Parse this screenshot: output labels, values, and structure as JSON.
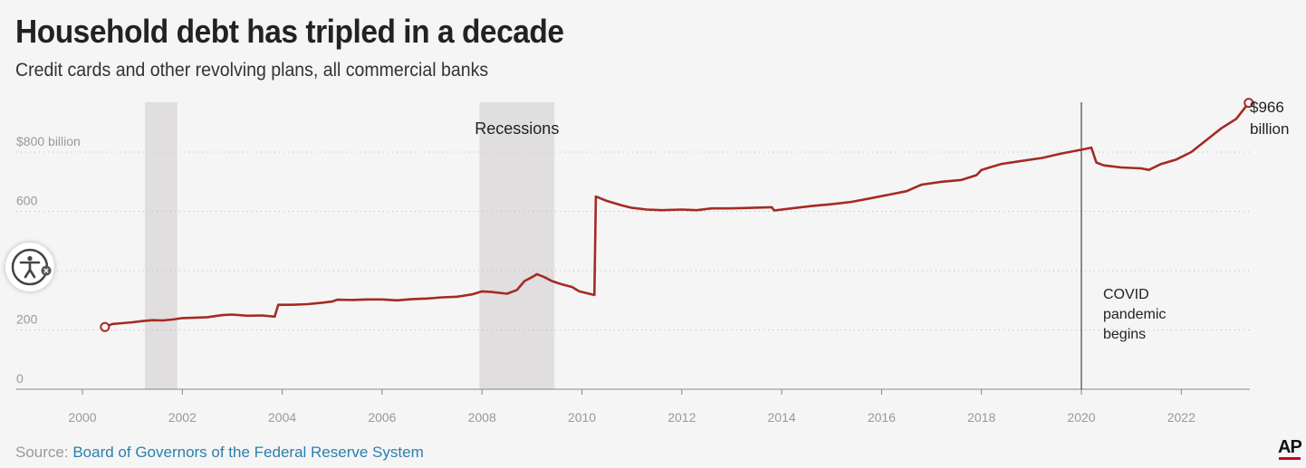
{
  "header": {
    "title": "Household debt has tripled in a decade",
    "subtitle": "Credit cards and other revolving plans, all commercial banks"
  },
  "footer": {
    "source_label": "Source:",
    "source_text": "Board of Governors of the Federal Reserve System",
    "logo_text": "AP"
  },
  "accessibility_widget": {
    "icon": "accessibility-icon",
    "badge_icon": "close-icon"
  },
  "colors": {
    "line": "#a52a23",
    "recession": "#e0dedf",
    "grid": "#bbbbbb",
    "axis": "#888888"
  },
  "chart_data": {
    "type": "line",
    "title": "Household debt has tripled in a decade",
    "subtitle": "Credit cards and other revolving plans, all commercial banks",
    "xlim": [
      1998.8,
      2023.5
    ],
    "ylim": [
      0,
      1000
    ],
    "y_ticks": [
      {
        "value": 0,
        "label": "0"
      },
      {
        "value": 200,
        "label": "200"
      },
      {
        "value": 400,
        "label": ""
      },
      {
        "value": 600,
        "label": "600"
      },
      {
        "value": 800,
        "label": "$800 billion"
      }
    ],
    "x_ticks": [
      {
        "value": 2000,
        "label": "2000"
      },
      {
        "value": 2002,
        "label": "2002"
      },
      {
        "value": 2004,
        "label": "2004"
      },
      {
        "value": 2006,
        "label": "2006"
      },
      {
        "value": 2008,
        "label": "2008"
      },
      {
        "value": 2010,
        "label": "2010"
      },
      {
        "value": 2012,
        "label": "2012"
      },
      {
        "value": 2014,
        "label": "2014"
      },
      {
        "value": 2016,
        "label": "2016"
      },
      {
        "value": 2018,
        "label": "2018"
      },
      {
        "value": 2020,
        "label": "2020"
      },
      {
        "value": 2022,
        "label": "2022"
      }
    ],
    "grid": true,
    "recessions": [
      {
        "start": 2001.25,
        "end": 2001.9
      },
      {
        "start": 2007.95,
        "end": 2009.45
      }
    ],
    "recession_label": "Recessions",
    "event": {
      "x": 2020.0,
      "label_lines": [
        "COVID",
        "pandemic",
        "begins"
      ]
    },
    "end_label_lines": [
      "$966",
      "billion"
    ],
    "series": [
      {
        "values": [
          [
            2000.45,
            210
          ],
          [
            2000.6,
            220
          ],
          [
            2000.8,
            223
          ],
          [
            2001.0,
            226
          ],
          [
            2001.2,
            230
          ],
          [
            2001.4,
            233
          ],
          [
            2001.6,
            232
          ],
          [
            2001.8,
            235
          ],
          [
            2002.0,
            240
          ],
          [
            2002.2,
            241
          ],
          [
            2002.5,
            243
          ],
          [
            2002.8,
            250
          ],
          [
            2003.0,
            252
          ],
          [
            2003.3,
            248
          ],
          [
            2003.6,
            249
          ],
          [
            2003.85,
            245
          ],
          [
            2003.92,
            285
          ],
          [
            2004.2,
            285
          ],
          [
            2004.5,
            287
          ],
          [
            2004.8,
            292
          ],
          [
            2005.0,
            296
          ],
          [
            2005.1,
            302
          ],
          [
            2005.4,
            301
          ],
          [
            2005.7,
            303
          ],
          [
            2006.0,
            303
          ],
          [
            2006.3,
            300
          ],
          [
            2006.6,
            304
          ],
          [
            2006.9,
            306
          ],
          [
            2007.2,
            310
          ],
          [
            2007.5,
            312
          ],
          [
            2007.8,
            320
          ],
          [
            2008.0,
            330
          ],
          [
            2008.2,
            328
          ],
          [
            2008.5,
            322
          ],
          [
            2008.7,
            335
          ],
          [
            2008.85,
            365
          ],
          [
            2009.0,
            378
          ],
          [
            2009.1,
            388
          ],
          [
            2009.25,
            378
          ],
          [
            2009.4,
            365
          ],
          [
            2009.6,
            354
          ],
          [
            2009.8,
            345
          ],
          [
            2009.95,
            330
          ],
          [
            2010.25,
            318
          ],
          [
            2010.28,
            650
          ],
          [
            2010.5,
            635
          ],
          [
            2010.8,
            620
          ],
          [
            2011.0,
            612
          ],
          [
            2011.3,
            606
          ],
          [
            2011.6,
            604
          ],
          [
            2012.0,
            606
          ],
          [
            2012.3,
            604
          ],
          [
            2012.6,
            610
          ],
          [
            2013.0,
            610
          ],
          [
            2013.4,
            612
          ],
          [
            2013.8,
            614
          ],
          [
            2013.85,
            603
          ],
          [
            2014.2,
            610
          ],
          [
            2014.6,
            618
          ],
          [
            2015.0,
            624
          ],
          [
            2015.4,
            632
          ],
          [
            2015.8,
            645
          ],
          [
            2016.2,
            658
          ],
          [
            2016.5,
            668
          ],
          [
            2016.8,
            690
          ],
          [
            2017.2,
            700
          ],
          [
            2017.6,
            706
          ],
          [
            2017.9,
            722
          ],
          [
            2018.0,
            740
          ],
          [
            2018.2,
            750
          ],
          [
            2018.4,
            760
          ],
          [
            2018.8,
            770
          ],
          [
            2019.2,
            780
          ],
          [
            2019.6,
            795
          ],
          [
            2020.0,
            808
          ],
          [
            2020.2,
            815
          ],
          [
            2020.3,
            765
          ],
          [
            2020.45,
            755
          ],
          [
            2020.8,
            748
          ],
          [
            2021.2,
            745
          ],
          [
            2021.35,
            740
          ],
          [
            2021.6,
            760
          ],
          [
            2021.9,
            775
          ],
          [
            2022.2,
            800
          ],
          [
            2022.5,
            840
          ],
          [
            2022.8,
            880
          ],
          [
            2023.1,
            912
          ],
          [
            2023.35,
            966
          ]
        ]
      }
    ]
  }
}
